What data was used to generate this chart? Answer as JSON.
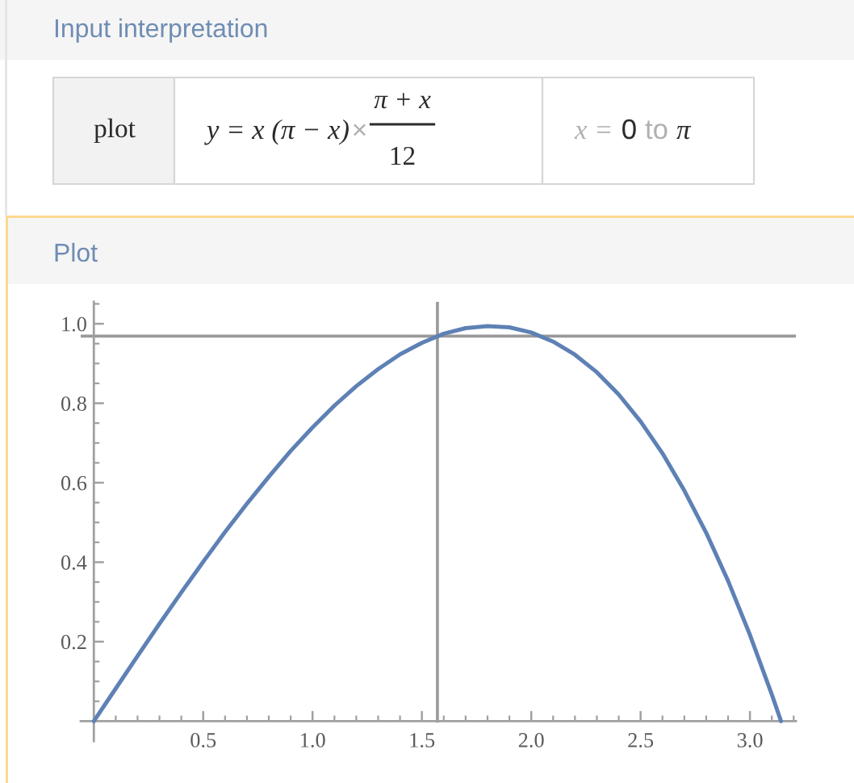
{
  "chart_data": {
    "type": "line",
    "title": "Plot",
    "annotations": [
      "Input interpretation",
      "plot",
      "y = x (π − x)",
      "×",
      "π + x",
      "12",
      "x =",
      "0",
      "to",
      "π"
    ],
    "xlim": [
      -0.06,
      3.21
    ],
    "ylim": [
      -0.05,
      1.055
    ],
    "xticks": [
      {
        "value": 0.1,
        "label": null
      },
      {
        "value": 0.2,
        "label": null
      },
      {
        "value": 0.3,
        "label": null
      },
      {
        "value": 0.4,
        "label": null
      },
      0.5,
      {
        "value": 0.6,
        "label": null
      },
      {
        "value": 0.7,
        "label": null
      },
      {
        "value": 0.8,
        "label": null
      },
      {
        "value": 0.9,
        "label": null
      },
      {
        "value": 1,
        "label": "1.0"
      },
      {
        "value": 1.1,
        "label": null
      },
      {
        "value": 1.2,
        "label": null
      },
      {
        "value": 1.3,
        "label": null
      },
      {
        "value": 1.4,
        "label": null
      },
      1.5,
      {
        "value": 1.6,
        "label": null
      },
      {
        "value": 1.7,
        "label": null
      },
      {
        "value": 1.8,
        "label": null
      },
      {
        "value": 1.9,
        "label": null
      },
      {
        "value": 2,
        "label": "2.0"
      },
      {
        "value": 2.1,
        "label": null
      },
      {
        "value": 2.2,
        "label": null
      },
      {
        "value": 2.3,
        "label": null
      },
      {
        "value": 2.4,
        "label": null
      },
      2.5,
      {
        "value": 2.6,
        "label": null
      },
      {
        "value": 2.7,
        "label": null
      },
      {
        "value": 2.8,
        "label": null
      },
      {
        "value": 2.9,
        "label": null
      },
      {
        "value": 3,
        "label": "3.0"
      },
      {
        "value": 3.1,
        "label": null
      },
      {
        "value": 3.2,
        "label": null
      }
    ],
    "yticks": [
      {
        "value": 0.05,
        "label": null
      },
      {
        "value": 0.1,
        "label": null
      },
      {
        "value": 0.15,
        "label": null
      },
      0.2,
      {
        "value": 0.25,
        "label": null
      },
      {
        "value": 0.3,
        "label": null
      },
      {
        "value": 0.35,
        "label": null
      },
      0.4,
      {
        "value": 0.45,
        "label": null
      },
      {
        "value": 0.5,
        "label": null
      },
      {
        "value": 0.55,
        "label": null
      },
      0.6,
      {
        "value": 0.65,
        "label": null
      },
      {
        "value": 0.7,
        "label": null
      },
      {
        "value": 0.75,
        "label": null
      },
      0.8,
      {
        "value": 0.85,
        "label": null
      },
      {
        "value": 0.9,
        "label": null
      },
      {
        "value": 0.95,
        "label": null
      },
      {
        "value": 1,
        "label": "1.0"
      },
      {
        "value": 1.05,
        "label": null
      }
    ],
    "series": [
      {
        "color": "#5e81b5",
        "x": [
          0,
          0.1,
          0.2,
          0.3,
          0.4,
          0.5,
          0.6,
          0.7,
          0.8,
          0.9,
          1.0,
          1.1,
          1.2,
          1.3,
          1.4,
          1.5,
          1.6,
          1.7,
          1.8,
          1.9,
          2.0,
          2.1,
          2.2,
          2.3,
          2.4,
          2.5,
          2.6,
          2.7,
          2.8,
          2.9,
          3.0,
          3.1,
          3.142
        ],
        "values": [
          0,
          0.082,
          0.164,
          0.245,
          0.324,
          0.401,
          0.476,
          0.547,
          0.615,
          0.68,
          0.739,
          0.794,
          0.843,
          0.886,
          0.923,
          0.952,
          0.975,
          0.989,
          0.994,
          0.991,
          0.978,
          0.955,
          0.922,
          0.878,
          0.822,
          0.754,
          0.674,
          0.58,
          0.474,
          0.353,
          0.217,
          0.067,
          0
        ]
      }
    ],
    "ref_lines": [
      {
        "axis": "x",
        "value": 1.571,
        "color": "#999999"
      },
      {
        "axis": "y",
        "value": 0.969,
        "color": "#999999"
      }
    ]
  }
}
